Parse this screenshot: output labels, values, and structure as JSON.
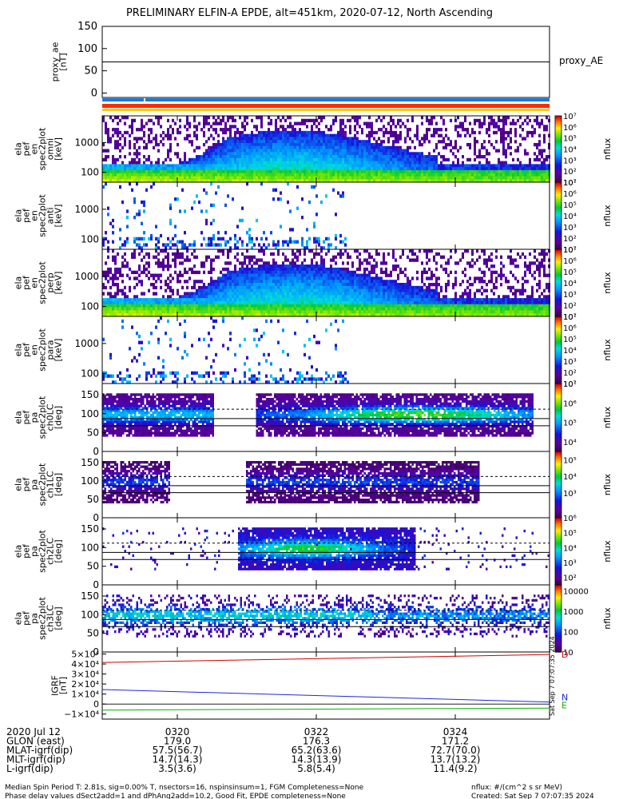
{
  "header": {
    "title": "PRELIMINARY ELFIN-A EPDE, alt=451km, 2020-07-12, North Ascending"
  },
  "chart_data": [
    {
      "type": "line",
      "panel": "proxy_ae",
      "ylabel": "proxy_ae\n[nT]",
      "legend": "proxy_AE",
      "ylim": [
        -10,
        150
      ],
      "yticks": [
        "150",
        "100",
        "50",
        "0"
      ],
      "series": [
        {
          "name": "proxy_AE",
          "value_approx": 70,
          "color": "#000000"
        }
      ],
      "science_zone_bars": [
        "#1e78dc",
        "#ff2a00",
        "#ffc800"
      ]
    },
    {
      "type": "heatmap",
      "panel": "ela_pef_en_spec2plot_omni",
      "ylabel": "ela\npef\nen\nspec2plot\nomni\n[keV]",
      "yscale": "log",
      "yticks": [
        "1000",
        "100"
      ],
      "colorbar": {
        "label": "nflux",
        "ticks": [
          "10⁷",
          "10⁶",
          "10⁵",
          "10⁴",
          "10³",
          "10²",
          "10¹"
        ],
        "range": [
          1,
          7
        ]
      }
    },
    {
      "type": "heatmap",
      "panel": "ela_pef_en_spec2plot_anti",
      "ylabel": "ela\npef\nen\nspec2plot\nanti\n[keV]",
      "yscale": "log",
      "yticks": [
        "1000",
        "100"
      ],
      "colorbar": {
        "label": "nflux",
        "ticks": [
          "10⁷",
          "10⁶",
          "10⁵",
          "10⁴",
          "10³",
          "10²",
          "10¹"
        ],
        "range": [
          1,
          7
        ]
      }
    },
    {
      "type": "heatmap",
      "panel": "ela_pef_en_spec2plot_perp",
      "ylabel": "ela\npef\nen\nspec2plot\nperp\n[keV]",
      "yscale": "log",
      "yticks": [
        "1000",
        "100"
      ],
      "colorbar": {
        "label": "nflux",
        "ticks": [
          "10⁷",
          "10⁶",
          "10⁵",
          "10⁴",
          "10³",
          "10²",
          "10¹"
        ],
        "range": [
          1,
          7
        ]
      }
    },
    {
      "type": "heatmap",
      "panel": "ela_pef_en_spec2plot_para",
      "ylabel": "ela\npef\nen\nspec2plot\npara\n[keV]",
      "yscale": "log",
      "yticks": [
        "1000",
        "100"
      ],
      "colorbar": {
        "label": "nflux",
        "ticks": [
          "10⁷",
          "10⁶",
          "10⁵",
          "10⁴",
          "10³",
          "10²",
          "10¹"
        ],
        "range": [
          1,
          7
        ]
      }
    },
    {
      "type": "heatmap",
      "panel": "ela_pef_pa_spec2plot_ch0LC",
      "ylabel": "ela\npef\npa\nspec2plot\nch0LC\n[deg]",
      "ylim": [
        0,
        180
      ],
      "yticks": [
        "150",
        "100",
        "50",
        "0"
      ],
      "colorbar": {
        "label": "nflux",
        "ticks": [
          "10⁷",
          "10⁶",
          "10⁵",
          "10⁴"
        ],
        "range": [
          3.5,
          7
        ]
      }
    },
    {
      "type": "heatmap",
      "panel": "ela_pef_pa_spec2plot_ch1LC",
      "ylabel": "ela\npef\npa\nspec2plot\nch1LC\n[deg]",
      "ylim": [
        0,
        180
      ],
      "yticks": [
        "150",
        "100",
        "50",
        "0"
      ],
      "colorbar": {
        "label": "nflux",
        "ticks": [
          "10⁶",
          "10⁵",
          "10⁴",
          "10³"
        ],
        "range": [
          2.5,
          6.5
        ]
      }
    },
    {
      "type": "heatmap",
      "panel": "ela_pef_pa_spec2plot_ch2LC",
      "ylabel": "ela\npef\npa\nspec2plot\nch2LC\n[deg]",
      "ylim": [
        0,
        180
      ],
      "yticks": [
        "150",
        "100",
        "50",
        "0"
      ],
      "colorbar": {
        "label": "nflux",
        "ticks": [
          "10⁶",
          "10⁵",
          "10⁴",
          "10³",
          "10²"
        ],
        "range": [
          1.5,
          6
        ]
      }
    },
    {
      "type": "heatmap",
      "panel": "ela_pef_pa_spec2plot_ch3LC",
      "ylabel": "ela\npef\npa\nspec2plot\nch3LC\n[deg]",
      "ylim": [
        0,
        180
      ],
      "yticks": [
        "150",
        "100",
        "50",
        "0"
      ],
      "colorbar": {
        "label": "nflux",
        "ticks": [
          "10000",
          "1000",
          "100",
          "10"
        ],
        "range": [
          1,
          4.3
        ]
      }
    },
    {
      "type": "line",
      "panel": "IGRF",
      "ylabel": "IGRF\n[nT]",
      "ylim": [
        -15000,
        52000
      ],
      "yticks": [
        "5×10⁴",
        "4×10⁴",
        "3×10⁴",
        "2×10⁴",
        "1×10⁴",
        "0",
        "−1×10⁴"
      ],
      "timestamp": "Sat Sep 7 07:07:35 2024",
      "series": [
        {
          "name": "D",
          "color": "#d20000",
          "values": [
            41500,
            49500
          ]
        },
        {
          "name": "N",
          "color": "#1e28dc",
          "values": [
            14500,
            2000
          ]
        },
        {
          "name": "E",
          "color": "#00b400",
          "values": [
            -6000,
            -4000
          ]
        }
      ],
      "legend_labels": [
        "D",
        "N",
        "E"
      ]
    }
  ],
  "axis": {
    "xticks": [
      "0320",
      "0322",
      "0324"
    ],
    "rows": [
      {
        "label": "2020 Jul 12",
        "values": [
          "0320",
          "0322",
          "0324"
        ]
      },
      {
        "label": "GLON (east)",
        "values": [
          "179.0",
          "176.3",
          "171.2"
        ]
      },
      {
        "label": "MLAT-igrf(dip)",
        "values": [
          "57.5(56.7)",
          "65.2(63.6)",
          "72.7(70.0)"
        ]
      },
      {
        "label": "MLT-igrf(dip)",
        "values": [
          "14.7(14.3)",
          "14.3(13.9)",
          "13.7(13.2)"
        ]
      },
      {
        "label": "L-igrf(dip)",
        "values": [
          "3.5(3.6)",
          "5.8(5.4)",
          "11.4(9.2)"
        ]
      }
    ]
  },
  "footer": {
    "line1": "Median Spin Period T: 2.81s, sig=0.00% T, nsectors=16, nspinsinsum=1, FGM Completeness=None",
    "line2": "Phase delay values dSect2add=1 and dPhAng2add=10.2, Good Fit, EPDE completeness=None",
    "units": "nflux: #/(cm^2 s sr MeV)",
    "created": "Created: Sat Sep  7 07:07:35 2024"
  }
}
